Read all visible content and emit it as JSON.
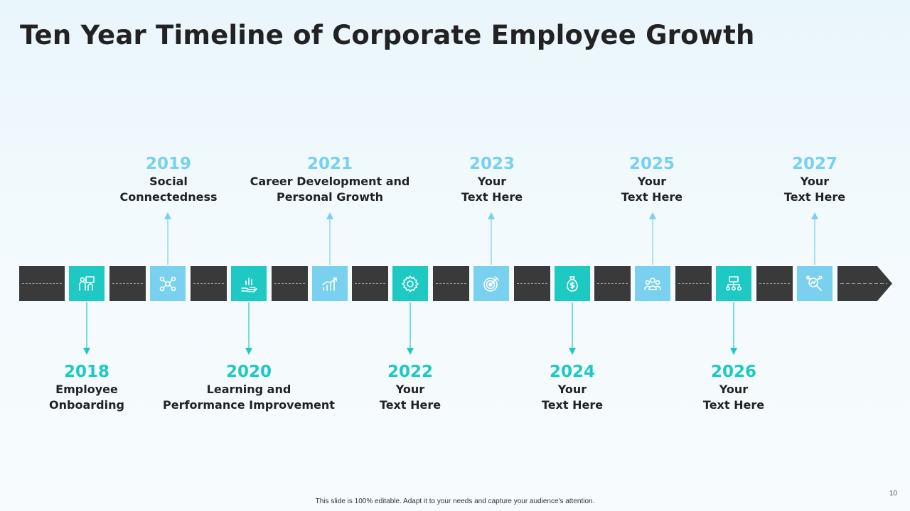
{
  "title": "Ten Year Timeline of Corporate Employee Growth",
  "colors": {
    "teal": "#1fc9c3",
    "blue": "#79d0ef",
    "track": "#3a3a3a",
    "text": "#222222"
  },
  "milestones": [
    {
      "year": "2018",
      "line1": "Employee",
      "line2": "Onboarding",
      "position": "below",
      "icon": "employees-board-icon"
    },
    {
      "year": "2019",
      "line1": "Social",
      "line2": "Connectedness",
      "position": "above",
      "icon": "network-people-icon"
    },
    {
      "year": "2020",
      "line1": "Learning and",
      "line2": "Performance Improvement",
      "position": "below",
      "icon": "hand-chart-icon"
    },
    {
      "year": "2021",
      "line1": "Career Development and",
      "line2": "Personal Growth",
      "position": "above",
      "icon": "growth-chart-icon"
    },
    {
      "year": "2022",
      "line1": "Your",
      "line2": "Text Here",
      "position": "below",
      "icon": "gear-icon"
    },
    {
      "year": "2023",
      "line1": "Your",
      "line2": "Text Here",
      "position": "above",
      "icon": "target-icon"
    },
    {
      "year": "2024",
      "line1": "Your",
      "line2": "Text Here",
      "position": "below",
      "icon": "money-bag-icon"
    },
    {
      "year": "2025",
      "line1": "Your",
      "line2": "Text Here",
      "position": "above",
      "icon": "team-icon"
    },
    {
      "year": "2026",
      "line1": "Your",
      "line2": "Text Here",
      "position": "below",
      "icon": "org-chart-icon"
    },
    {
      "year": "2027",
      "line1": "Your",
      "line2": "Text Here",
      "position": "above",
      "icon": "search-analytics-icon"
    }
  ],
  "footer": "This slide is 100% editable. Adapt it to your needs and capture your audience's attention.",
  "page_number": "10"
}
